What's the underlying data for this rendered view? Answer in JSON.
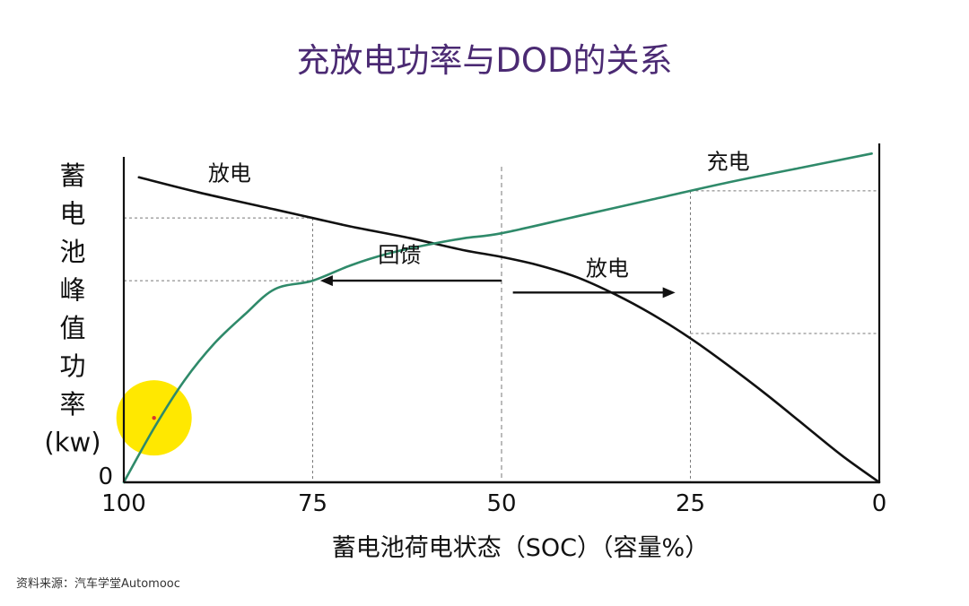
{
  "chart_data": {
    "type": "line",
    "title": "充放电功率与DOD的关系",
    "xlabel": "蓄电池荷电状态（SOC）（容量%）",
    "ylabel": "蓄电池峰值功率(kw)",
    "ylabel_chars": [
      "蓄",
      "电",
      "池",
      "峰",
      "值",
      "功",
      "率",
      "(kw)"
    ],
    "x_ticks": [
      "100",
      "75",
      "50",
      "25",
      "0"
    ],
    "y_ticks": [
      "0"
    ],
    "xlim": [
      100,
      0
    ],
    "ylim": [
      0,
      10
    ],
    "grid": "dotted reference lines at SOC 75 and 25, dashed line at 50",
    "series": [
      {
        "name": "放电",
        "color": "#111111",
        "x": [
          98,
          90,
          80,
          75,
          70,
          62,
          55,
          50,
          45,
          40,
          35,
          30,
          25,
          20,
          15,
          10,
          5,
          0
        ],
        "y": [
          9.0,
          8.55,
          8.05,
          7.8,
          7.55,
          7.2,
          6.85,
          6.65,
          6.4,
          6.05,
          5.55,
          4.95,
          4.25,
          3.45,
          2.6,
          1.7,
          0.8,
          0
        ]
      },
      {
        "name": "充电",
        "color": "#2f8a6a",
        "x": [
          100,
          96,
          92,
          88,
          84,
          80,
          75,
          70,
          65,
          60,
          55,
          50,
          40,
          30,
          20,
          10,
          1
        ],
        "y": [
          0,
          1.6,
          3.0,
          4.1,
          4.95,
          5.7,
          5.95,
          6.4,
          6.75,
          7.0,
          7.2,
          7.35,
          7.85,
          8.35,
          8.85,
          9.3,
          9.7
        ]
      }
    ],
    "annotations": [
      {
        "text": "放电",
        "x": 86,
        "y": 8.9
      },
      {
        "text": "充电",
        "x": 20,
        "y": 9.25
      },
      {
        "text": "回馈",
        "x": 63.5,
        "y": 6.5
      },
      {
        "text": "放电",
        "x": 36,
        "y": 6.1
      }
    ],
    "arrows": [
      {
        "from_x": 50,
        "to_x": 74,
        "y": 5.95
      },
      {
        "from_x": 48.5,
        "to_x": 27,
        "y": 5.6
      }
    ],
    "highlight": {
      "x": 96,
      "y": 1.9,
      "color": "#ffe800"
    }
  },
  "footer": {
    "source": "资料来源：汽车学堂Automooc"
  }
}
